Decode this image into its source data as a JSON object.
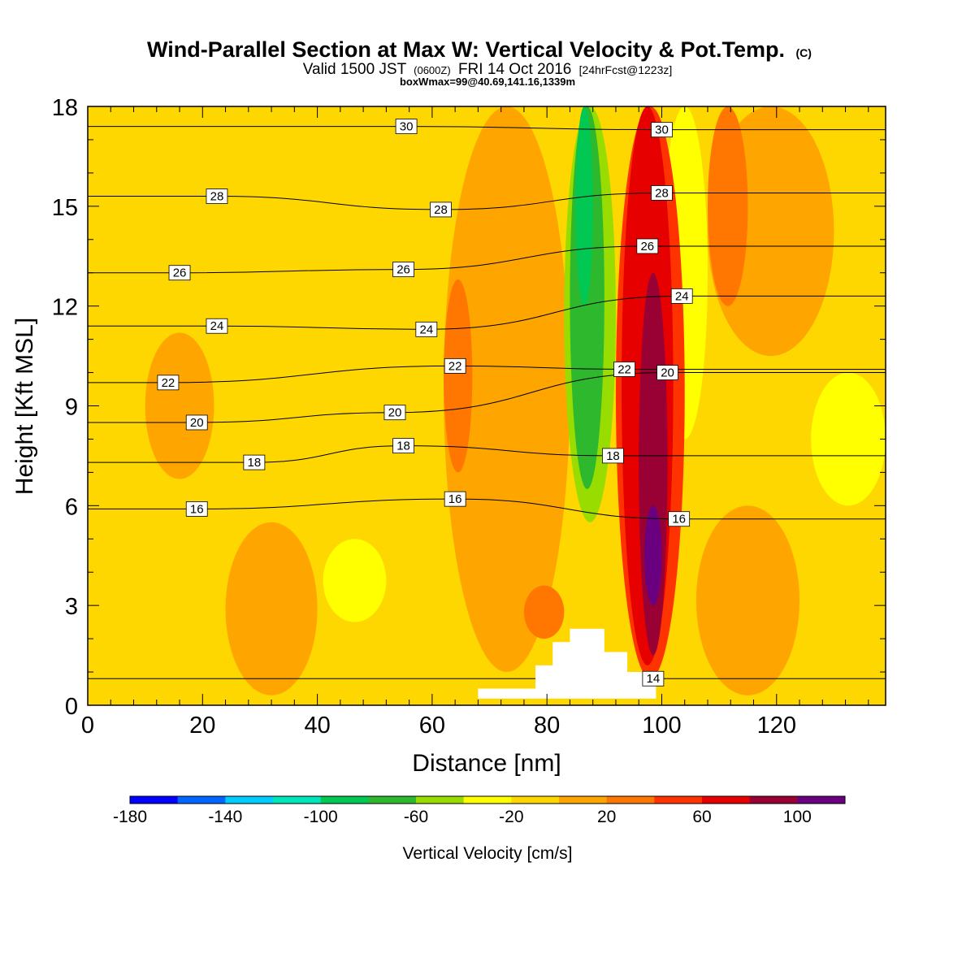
{
  "title": "Wind-Parallel Section at Max W: Vertical Velocity & Pot.Temp.",
  "title_mark": "(C)",
  "subtitle": {
    "part1": "Valid 1500 JST",
    "part2": "(0600Z)",
    "part3": "FRI 14 Oct 2016",
    "part4": "[24hrFcst@1223z]"
  },
  "box_note": "boxWmax=99@40.69,141.16,1339m",
  "colors": {
    "background": "#ffffff",
    "base_fill": "#ffd700",
    "terrain": "#ffffff",
    "contour": "#000000"
  },
  "chart_data": {
    "type": "heatmap",
    "xlabel": "Distance [nm]",
    "ylabel": "Height [Kft MSL]",
    "xlim": [
      0,
      139
    ],
    "ylim": [
      0,
      18
    ],
    "x_ticks": [
      0,
      20,
      40,
      60,
      80,
      100,
      120
    ],
    "y_ticks": [
      0,
      3,
      6,
      9,
      12,
      15,
      18
    ],
    "colorbar": {
      "title": "Vertical Velocity [cm/s]",
      "bounds": [
        -180,
        -160,
        -140,
        -120,
        -100,
        -80,
        -60,
        -40,
        -20,
        0,
        20,
        40,
        60,
        80,
        100,
        120
      ],
      "labels": [
        -180,
        -140,
        -100,
        -60,
        -20,
        20,
        60,
        100
      ],
      "colors": [
        "#0000ff",
        "#0066ff",
        "#00ccff",
        "#00e6b8",
        "#00c853",
        "#2eb82e",
        "#99dd00",
        "#ffff00",
        "#ffd700",
        "#ffa500",
        "#ff7700",
        "#ff3300",
        "#e60000",
        "#990033",
        "#6a0080"
      ]
    },
    "terrain_nm_kft": [
      [
        68,
        0.2
      ],
      [
        68,
        0.5
      ],
      [
        78,
        0.5
      ],
      [
        78,
        1.2
      ],
      [
        81,
        1.2
      ],
      [
        81,
        1.9
      ],
      [
        84,
        1.9
      ],
      [
        84,
        2.3
      ],
      [
        90,
        2.3
      ],
      [
        90,
        1.6
      ],
      [
        94,
        1.6
      ],
      [
        94,
        1.0
      ],
      [
        99,
        1.0
      ],
      [
        99,
        0.2
      ]
    ],
    "vertical_velocity_regions": [
      {
        "category": "-20 to 0",
        "x": [
          0,
          139
        ],
        "y": [
          0,
          18
        ]
      },
      {
        "category": "0 to 20",
        "x": [
          62,
          84
        ],
        "y": [
          1.0,
          18
        ],
        "note": "broad band"
      },
      {
        "category": "0 to 20",
        "x": [
          10,
          22
        ],
        "y": [
          6.8,
          11.2
        ]
      },
      {
        "category": "0 to 20",
        "x": [
          24,
          40
        ],
        "y": [
          0.3,
          5.5
        ]
      },
      {
        "category": "0 to 20",
        "x": [
          108,
          130
        ],
        "y": [
          10.5,
          18
        ]
      },
      {
        "category": "0 to 20",
        "x": [
          106,
          124
        ],
        "y": [
          0.3,
          6
        ]
      },
      {
        "category": "20 to 40",
        "x": [
          62,
          67
        ],
        "y": [
          7.0,
          12.8
        ]
      },
      {
        "category": "20 to 40",
        "x": [
          76,
          83
        ],
        "y": [
          2,
          3.6
        ]
      },
      {
        "category": "20 to 40",
        "x": [
          108,
          115
        ],
        "y": [
          12,
          18
        ]
      },
      {
        "category": "-40 to -20",
        "x": [
          41,
          52
        ],
        "y": [
          2.5,
          5
        ]
      },
      {
        "category": "-40 to -20",
        "x": [
          126,
          139
        ],
        "y": [
          6,
          10
        ]
      },
      {
        "category": "-40 to -20",
        "x": [
          100,
          108
        ],
        "y": [
          8,
          18
        ]
      },
      {
        "category": "-60 to -40",
        "x": [
          83,
          92
        ],
        "y": [
          5.5,
          18
        ]
      },
      {
        "category": "-80 to -60",
        "x": [
          84,
          90
        ],
        "y": [
          6.5,
          18
        ]
      },
      {
        "category": "-100 to -80",
        "x": [
          85,
          88
        ],
        "y": [
          12,
          18
        ]
      },
      {
        "category": "40 to 60",
        "x": [
          92,
          104
        ],
        "y": [
          0.8,
          18
        ]
      },
      {
        "category": "60 to 80",
        "x": [
          93,
          102
        ],
        "y": [
          1.2,
          18
        ]
      },
      {
        "category": "80 to 100",
        "x": [
          96,
          101
        ],
        "y": [
          1.5,
          13
        ]
      },
      {
        "category": "100 to 120",
        "x": [
          97,
          100
        ],
        "y": [
          3,
          6
        ]
      }
    ],
    "potential_temperature_contours_C": [
      {
        "value": 14,
        "labels": [
          [
            98.5,
            0.8
          ]
        ]
      },
      {
        "value": 16,
        "labels": [
          [
            19,
            5.9
          ],
          [
            64,
            6.2
          ],
          [
            103,
            5.6
          ]
        ]
      },
      {
        "value": 18,
        "labels": [
          [
            29,
            7.3
          ],
          [
            55,
            7.8
          ],
          [
            91.5,
            7.5
          ]
        ]
      },
      {
        "value": 20,
        "labels": [
          [
            19,
            8.5
          ],
          [
            53.5,
            8.8
          ],
          [
            101,
            10.0
          ]
        ]
      },
      {
        "value": 22,
        "labels": [
          [
            14,
            9.7
          ],
          [
            64,
            10.2
          ],
          [
            93.5,
            10.1
          ]
        ]
      },
      {
        "value": 24,
        "labels": [
          [
            22.5,
            11.4
          ],
          [
            59,
            11.3
          ],
          [
            103.5,
            12.3
          ]
        ]
      },
      {
        "value": 26,
        "labels": [
          [
            16,
            13.0
          ],
          [
            55,
            13.1
          ],
          [
            97.5,
            13.8
          ]
        ]
      },
      {
        "value": 28,
        "labels": [
          [
            22.5,
            15.3
          ],
          [
            61.5,
            14.9
          ],
          [
            100,
            15.4
          ]
        ]
      },
      {
        "value": 30,
        "labels": [
          [
            55.5,
            17.4
          ],
          [
            100,
            17.3
          ]
        ]
      }
    ]
  }
}
